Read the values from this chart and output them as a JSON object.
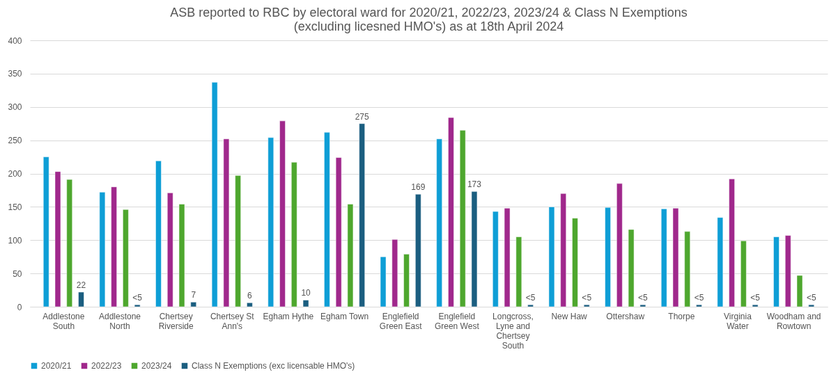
{
  "chart_data": {
    "type": "bar",
    "title": "ASB reported to RBC by electoral ward for 2020/21, 2022/23, 2023/24 & Class N Exemptions (excluding licesned HMO's) as at 18th April 2024",
    "categories": [
      "Addlestone South",
      "Addlestone North",
      "Chertsey Riverside",
      "Chertsey St Ann's",
      "Egham Hythe",
      "Egham Town",
      "Englefield Green East",
      "Englefield Green West",
      "Longcross, Lyne and Chertsey South",
      "New Haw",
      "Ottershaw",
      "Thorpe",
      "Virginia Water",
      "Woodham and Rowtown"
    ],
    "series": [
      {
        "name": "2020/21",
        "color": "#0e9ed6",
        "values": [
          225,
          172,
          219,
          337,
          254,
          262,
          75,
          252,
          143,
          150,
          149,
          147,
          134,
          105
        ]
      },
      {
        "name": "2022/23",
        "color": "#a0288c",
        "values": [
          203,
          180,
          171,
          252,
          279,
          224,
          101,
          284,
          148,
          170,
          185,
          148,
          192,
          107
        ]
      },
      {
        "name": "2023/24",
        "color": "#4ea72e",
        "values": [
          191,
          146,
          154,
          197,
          217,
          154,
          79,
          265,
          105,
          133,
          116,
          113,
          99,
          47
        ]
      },
      {
        "name": "Class N Exemptions (exc licensable HMO's)",
        "color": "#1b5e80",
        "values": [
          22,
          3,
          7,
          6,
          10,
          275,
          169,
          173,
          3,
          3,
          3,
          3,
          3,
          3
        ],
        "value_labels": [
          "22",
          "<5",
          "7",
          "6",
          "10",
          "275",
          "169",
          "173",
          "<5",
          "<5",
          "<5",
          "<5",
          "<5",
          "<5"
        ]
      }
    ],
    "ylim": [
      0,
      400
    ],
    "yticks": [
      0,
      50,
      100,
      150,
      200,
      250,
      300,
      350,
      400
    ],
    "grid": "y",
    "legend": "bottom"
  }
}
